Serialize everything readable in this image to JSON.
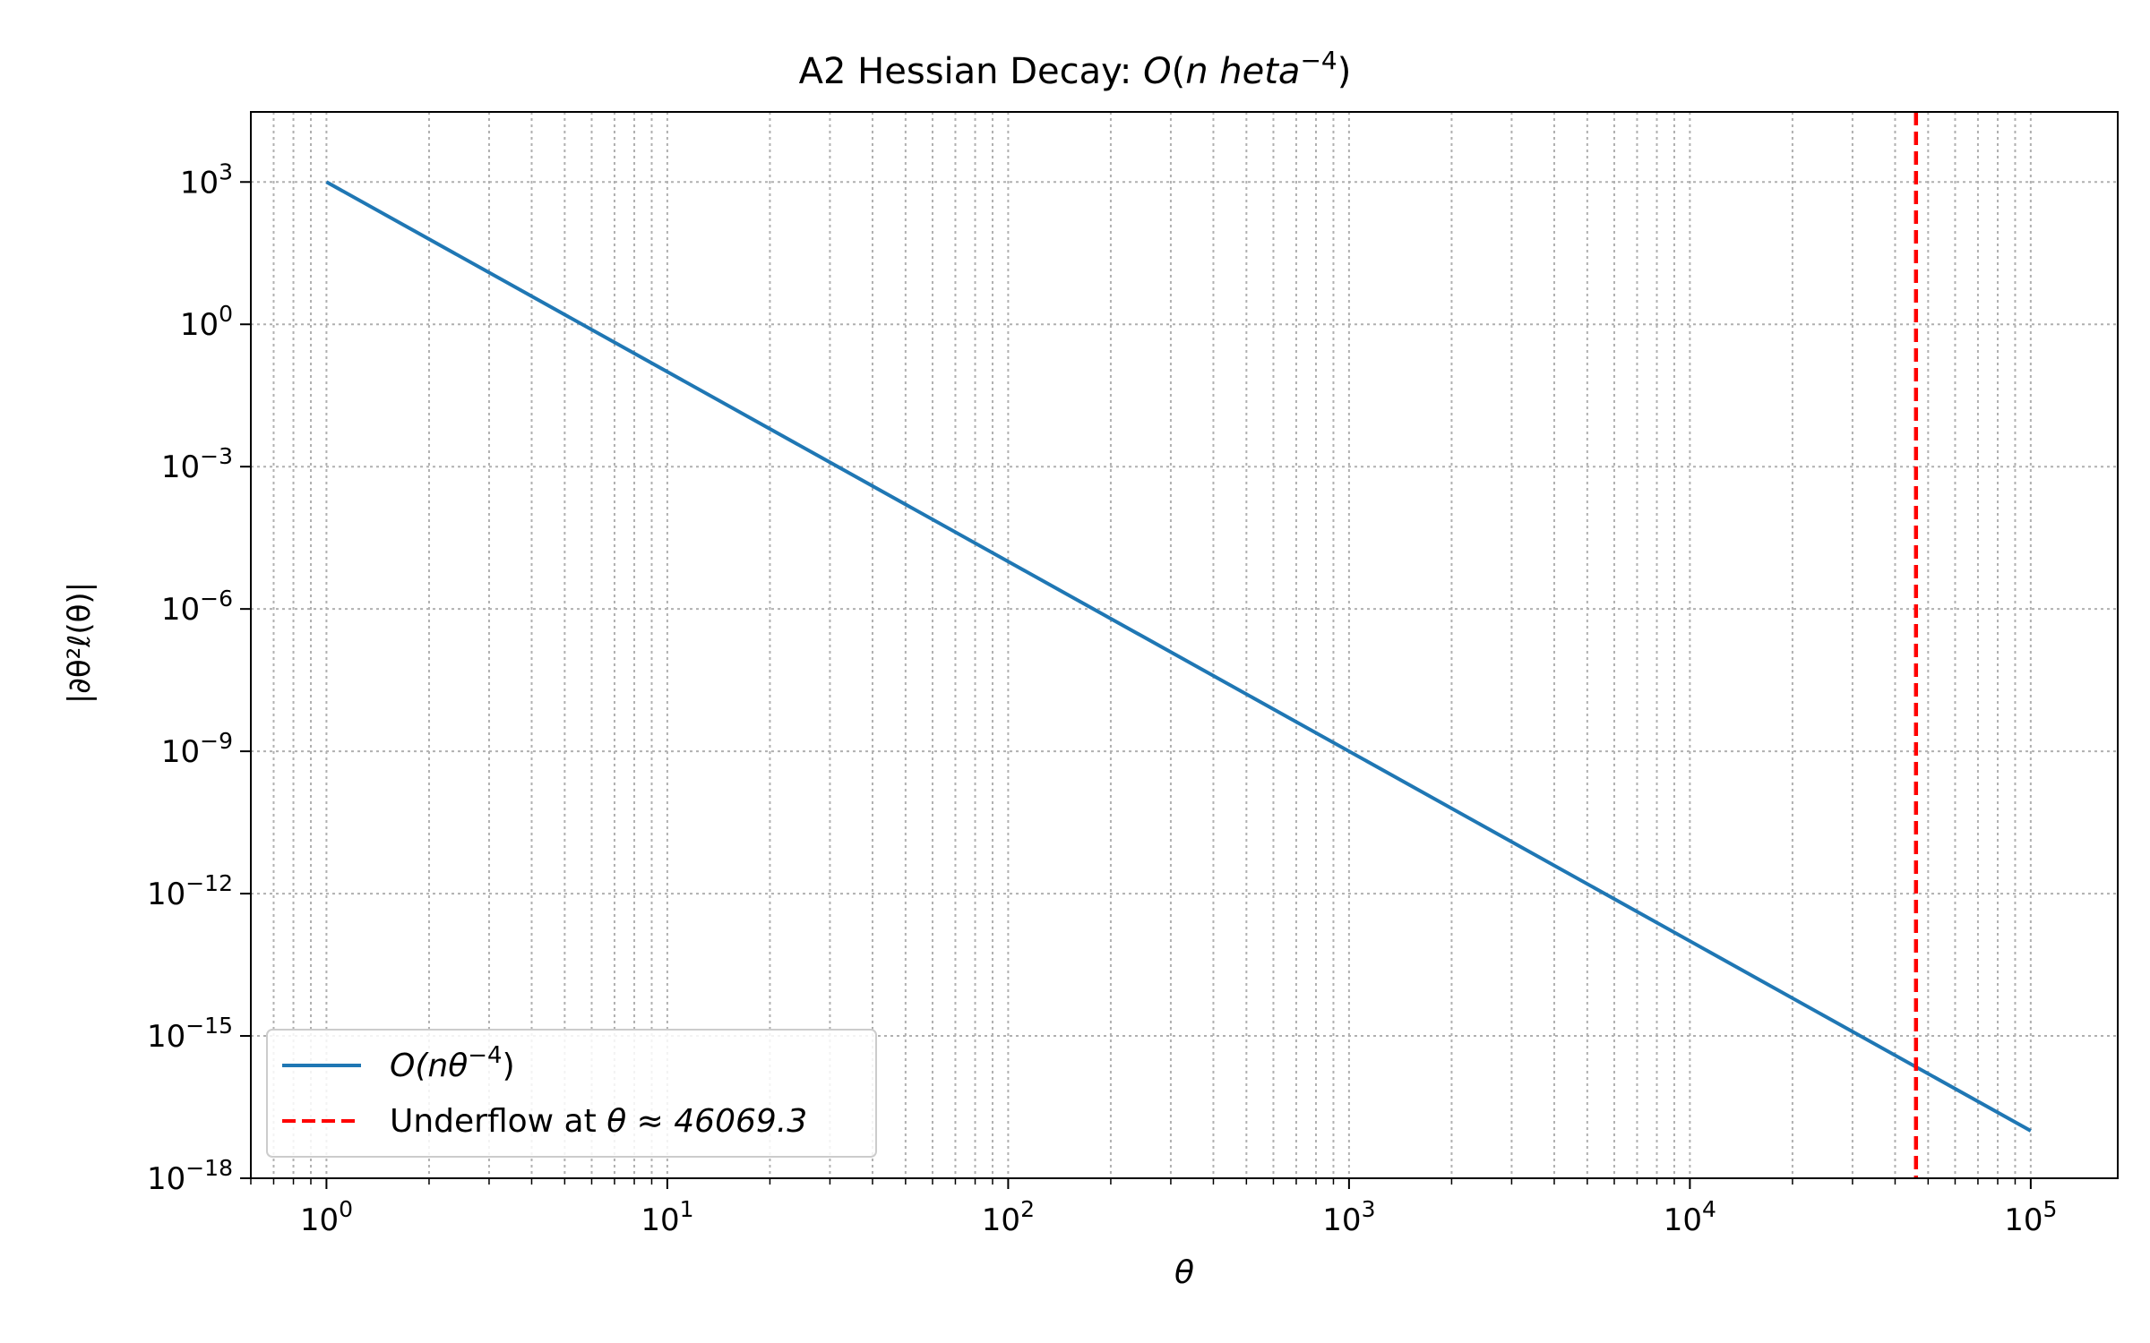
{
  "chart_data": {
    "type": "line",
    "title": {
      "prefix": "A2 Hessian Decay: ",
      "math_base": "O",
      "math_open": "(",
      "math_body": "n heta",
      "math_sup": "−4",
      "math_close": ")"
    },
    "xlabel": "θ",
    "ylabel": "|∂θ²ℓ(θ)|",
    "x_scale": "log",
    "y_scale": "log",
    "xlim": [
      0.6,
      180000
    ],
    "ylim": [
      1e-18,
      30000.0
    ],
    "x_ticks": [
      {
        "value": 1,
        "base": "10",
        "exp": "0"
      },
      {
        "value": 10,
        "base": "10",
        "exp": "1"
      },
      {
        "value": 100,
        "base": "10",
        "exp": "2"
      },
      {
        "value": 1000,
        "base": "10",
        "exp": "3"
      },
      {
        "value": 10000,
        "base": "10",
        "exp": "4"
      },
      {
        "value": 100000,
        "base": "10",
        "exp": "5"
      }
    ],
    "y_ticks": [
      {
        "value": 1000.0,
        "base": "10",
        "exp": "3"
      },
      {
        "value": 1.0,
        "base": "10",
        "exp": "0"
      },
      {
        "value": 0.001,
        "base": "10",
        "exp": "−3"
      },
      {
        "value": 1e-06,
        "base": "10",
        "exp": "−6"
      },
      {
        "value": 1e-09,
        "base": "10",
        "exp": "−9"
      },
      {
        "value": 1e-12,
        "base": "10",
        "exp": "−12"
      },
      {
        "value": 1e-15,
        "base": "10",
        "exp": "−15"
      },
      {
        "value": 1e-18,
        "base": "10",
        "exp": "−18"
      }
    ],
    "grid": true,
    "legend_position": "lower-left",
    "series": [
      {
        "name": "O(n θ^−4)",
        "legend_math": "O(nθ",
        "legend_sup": "−4",
        "legend_close": ")",
        "color": "#1f77b4",
        "style": "solid",
        "x": [
          1,
          100000
        ],
        "y": [
          1000,
          1e-17
        ]
      }
    ],
    "vlines": [
      {
        "name": "Underflow at θ≈46069.3",
        "legend_text": "Underflow at ",
        "legend_math": "θ ≈ 46069.3",
        "color": "#ff0000",
        "style": "dashed",
        "x": 46069.3
      }
    ]
  }
}
